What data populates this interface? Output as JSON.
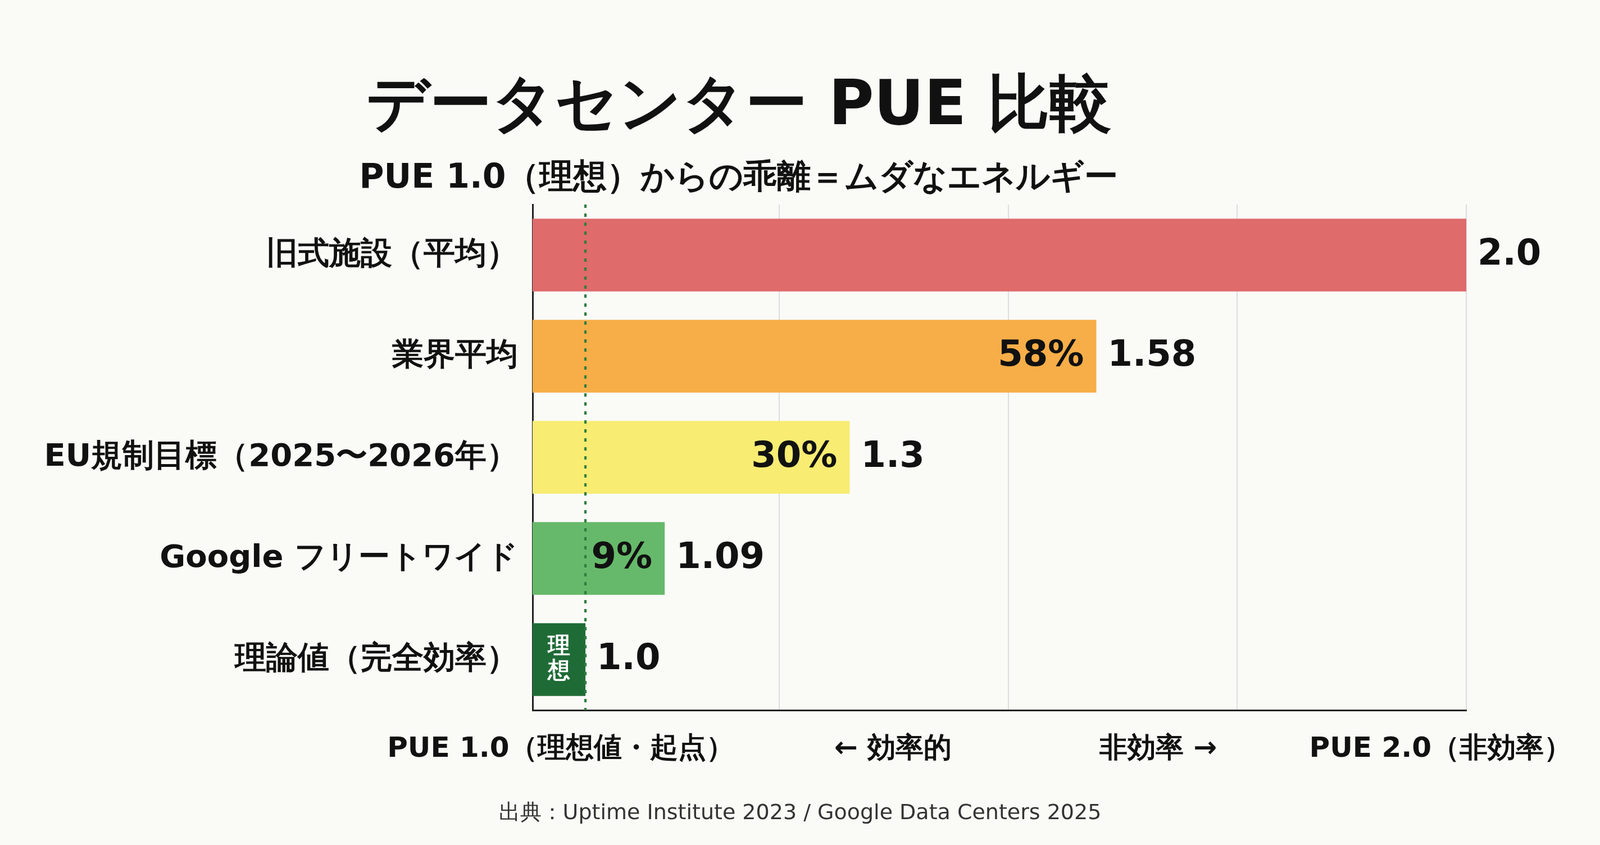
{
  "chart_data": {
    "type": "bar",
    "orientation": "horizontal",
    "title": "データセンター PUE 比較",
    "subtitle": "PUE 1.0（理想）からの乖離＝ムダなエネルギー",
    "categories": [
      "旧式施設（平均）",
      "業界平均",
      "EU規制目標（2025〜2026年）",
      "Google フリートワイド",
      "理論値（完全効率）"
    ],
    "values": [
      2.0,
      1.58,
      1.3,
      1.09,
      1.0
    ],
    "value_labels": [
      "2.0",
      "1.58",
      "1.3",
      "1.09",
      "1.0"
    ],
    "inner_labels": [
      null,
      "58%",
      "30%",
      "9%",
      "理想"
    ],
    "colors": [
      "#df6b6b",
      "#f7ae48",
      "#f8ec72",
      "#66b96a",
      "#1f6b36"
    ],
    "xlim": [
      0.94,
      2.0
    ],
    "xticks": [
      1.0,
      1.22,
      1.48,
      1.74,
      2.0
    ],
    "grid": true,
    "tick_labels": "y",
    "data_labels": true,
    "annotations": [
      "PUE 1.0（理想値・起点）",
      "← 効率的",
      "非効率 →",
      "PUE 2.0（非効率）"
    ],
    "source": "出典：Uptime Institute 2023 / Google Data Centers 2025"
  }
}
